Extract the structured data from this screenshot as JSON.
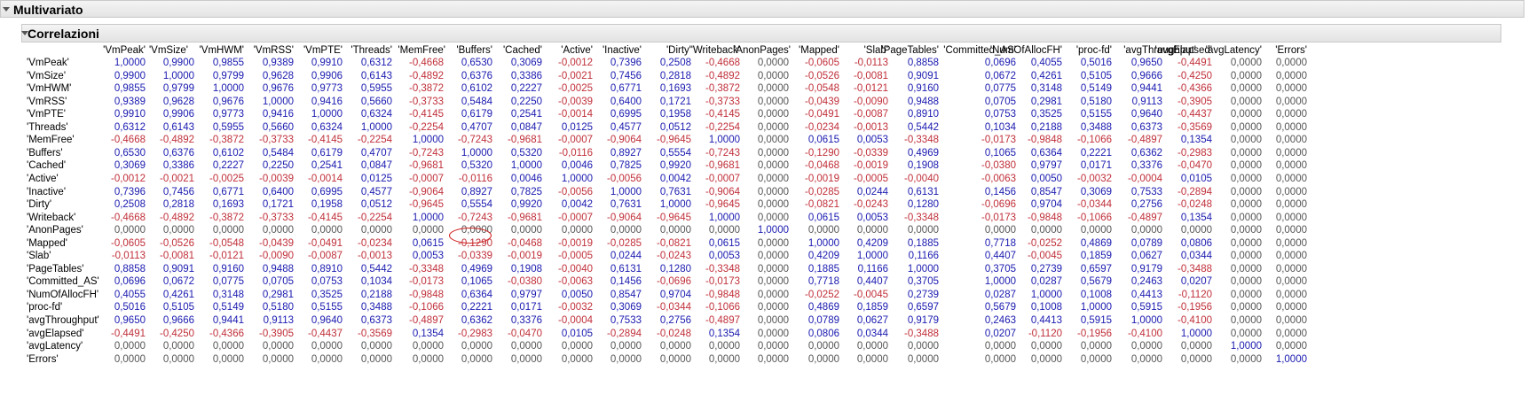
{
  "outer_panel": {
    "title": "Multivariato"
  },
  "inner_panel": {
    "title": "Correlazioni"
  },
  "variables": [
    "'VmPeak'",
    "'VmSize'",
    "'VmHWM'",
    "'VmRSS'",
    "'VmPTE'",
    "'Threads'",
    "'MemFree'",
    "'Buffers'",
    "'Cached'",
    "'Active'",
    "'Inactive'",
    "'Dirty'",
    "'Writeback'",
    "'AnonPages'",
    "'Mapped'",
    "'Slab'",
    "'PageTables'",
    "'Committed_AS'",
    "'NumOfAllocFH'",
    "'proc-fd'",
    "'avgThroughput'",
    "'avgElapsed'",
    "'avgLatency'",
    "'Errors'"
  ],
  "matrix": [
    [
      "1,0000",
      "0,9900",
      "0,9855",
      "0,9389",
      "0,9910",
      "0,6312",
      "-0,4668",
      "0,6530",
      "0,3069",
      "-0,0012",
      "0,7396",
      "0,2508",
      "-0,4668",
      "0,0000",
      "-0,0605",
      "-0,0113",
      "0,8858",
      "0,0696",
      "0,4055",
      "0,5016",
      "0,9650",
      "-0,4491",
      "0,0000",
      "0,0000"
    ],
    [
      "0,9900",
      "1,0000",
      "0,9799",
      "0,9628",
      "0,9906",
      "0,6143",
      "-0,4892",
      "0,6376",
      "0,3386",
      "-0,0021",
      "0,7456",
      "0,2818",
      "-0,4892",
      "0,0000",
      "-0,0526",
      "-0,0081",
      "0,9091",
      "0,0672",
      "0,4261",
      "0,5105",
      "0,9666",
      "-0,4250",
      "0,0000",
      "0,0000"
    ],
    [
      "0,9855",
      "0,9799",
      "1,0000",
      "0,9676",
      "0,9773",
      "0,5955",
      "-0,3872",
      "0,6102",
      "0,2227",
      "-0,0025",
      "0,6771",
      "0,1693",
      "-0,3872",
      "0,0000",
      "-0,0548",
      "-0,0121",
      "0,9160",
      "0,0775",
      "0,3148",
      "0,5149",
      "0,9441",
      "-0,4366",
      "0,0000",
      "0,0000"
    ],
    [
      "0,9389",
      "0,9628",
      "0,9676",
      "1,0000",
      "0,9416",
      "0,5660",
      "-0,3733",
      "0,5484",
      "0,2250",
      "-0,0039",
      "0,6400",
      "0,1721",
      "-0,3733",
      "0,0000",
      "-0,0439",
      "-0,0090",
      "0,9488",
      "0,0705",
      "0,2981",
      "0,5180",
      "0,9113",
      "-0,3905",
      "0,0000",
      "0,0000"
    ],
    [
      "0,9910",
      "0,9906",
      "0,9773",
      "0,9416",
      "1,0000",
      "0,6324",
      "-0,4145",
      "0,6179",
      "0,2541",
      "-0,0014",
      "0,6995",
      "0,1958",
      "-0,4145",
      "0,0000",
      "-0,0491",
      "-0,0087",
      "0,8910",
      "0,0753",
      "0,3525",
      "0,5155",
      "0,9640",
      "-0,4437",
      "0,0000",
      "0,0000"
    ],
    [
      "0,6312",
      "0,6143",
      "0,5955",
      "0,5660",
      "0,6324",
      "1,0000",
      "-0,2254",
      "0,4707",
      "0,0847",
      "0,0125",
      "0,4577",
      "0,0512",
      "-0,2254",
      "0,0000",
      "-0,0234",
      "-0,0013",
      "0,5442",
      "0,1034",
      "0,2188",
      "0,3488",
      "0,6373",
      "-0,3569",
      "0,0000",
      "0,0000"
    ],
    [
      "-0,4668",
      "-0,4892",
      "-0,3872",
      "-0,3733",
      "-0,4145",
      "-0,2254",
      "1,0000",
      "-0,7243",
      "-0,9681",
      "-0,0007",
      "-0,9064",
      "-0,9645",
      "1,0000",
      "0,0000",
      "0,0615",
      "0,0053",
      "-0,3348",
      "-0,0173",
      "-0,9848",
      "-0,1066",
      "-0,4897",
      "0,1354",
      "0,0000",
      "0,0000"
    ],
    [
      "0,6530",
      "0,6376",
      "0,6102",
      "0,5484",
      "0,6179",
      "0,4707",
      "-0,7243",
      "1,0000",
      "0,5320",
      "-0,0116",
      "0,8927",
      "0,5554",
      "-0,7243",
      "0,0000",
      "-0,1290",
      "-0,0339",
      "0,4969",
      "0,1065",
      "0,6364",
      "0,2221",
      "0,6362",
      "-0,2983",
      "0,0000",
      "0,0000"
    ],
    [
      "0,3069",
      "0,3386",
      "0,2227",
      "0,2250",
      "0,2541",
      "0,0847",
      "-0,9681",
      "0,5320",
      "1,0000",
      "0,0046",
      "0,7825",
      "0,9920",
      "-0,9681",
      "0,0000",
      "-0,0468",
      "-0,0019",
      "0,1908",
      "-0,0380",
      "0,9797",
      "0,0171",
      "0,3376",
      "-0,0470",
      "0,0000",
      "0,0000"
    ],
    [
      "-0,0012",
      "-0,0021",
      "-0,0025",
      "-0,0039",
      "-0,0014",
      "0,0125",
      "-0,0007",
      "-0,0116",
      "0,0046",
      "1,0000",
      "-0,0056",
      "0,0042",
      "-0,0007",
      "0,0000",
      "-0,0019",
      "-0,0005",
      "-0,0040",
      "-0,0063",
      "0,0050",
      "-0,0032",
      "-0,0004",
      "0,0105",
      "0,0000",
      "0,0000"
    ],
    [
      "0,7396",
      "0,7456",
      "0,6771",
      "0,6400",
      "0,6995",
      "0,4577",
      "-0,9064",
      "0,8927",
      "0,7825",
      "-0,0056",
      "1,0000",
      "0,7631",
      "-0,9064",
      "0,0000",
      "-0,0285",
      "0,0244",
      "0,6131",
      "0,1456",
      "0,8547",
      "0,3069",
      "0,7533",
      "-0,2894",
      "0,0000",
      "0,0000"
    ],
    [
      "0,2508",
      "0,2818",
      "0,1693",
      "0,1721",
      "0,1958",
      "0,0512",
      "-0,9645",
      "0,5554",
      "0,9920",
      "0,0042",
      "0,7631",
      "1,0000",
      "-0,9645",
      "0,0000",
      "-0,0821",
      "-0,0243",
      "0,1280",
      "-0,0696",
      "0,9704",
      "-0,0344",
      "0,2756",
      "-0,0248",
      "0,0000",
      "0,0000"
    ],
    [
      "-0,4668",
      "-0,4892",
      "-0,3872",
      "-0,3733",
      "-0,4145",
      "-0,2254",
      "1,0000",
      "-0,7243",
      "-0,9681",
      "-0,0007",
      "-0,9064",
      "-0,9645",
      "1,0000",
      "0,0000",
      "0,0615",
      "0,0053",
      "-0,3348",
      "-0,0173",
      "-0,9848",
      "-0,1066",
      "-0,4897",
      "0,1354",
      "0,0000",
      "0,0000"
    ],
    [
      "0,0000",
      "0,0000",
      "0,0000",
      "0,0000",
      "0,0000",
      "0,0000",
      "0,0000",
      "0,0000",
      "0,0000",
      "0,0000",
      "0,0000",
      "0,0000",
      "0,0000",
      "1,0000",
      "0,0000",
      "0,0000",
      "0,0000",
      "0,0000",
      "0,0000",
      "0,0000",
      "0,0000",
      "0,0000",
      "0,0000",
      "0,0000"
    ],
    [
      "-0,0605",
      "-0,0526",
      "-0,0548",
      "-0,0439",
      "-0,0491",
      "-0,0234",
      "0,0615",
      "-0,1290",
      "-0,0468",
      "-0,0019",
      "-0,0285",
      "-0,0821",
      "0,0615",
      "0,0000",
      "1,0000",
      "0,4209",
      "0,1885",
      "0,7718",
      "-0,0252",
      "0,4869",
      "0,0789",
      "0,0806",
      "0,0000",
      "0,0000"
    ],
    [
      "-0,0113",
      "-0,0081",
      "-0,0121",
      "-0,0090",
      "-0,0087",
      "-0,0013",
      "0,0053",
      "-0,0339",
      "-0,0019",
      "-0,0005",
      "0,0244",
      "-0,0243",
      "0,0053",
      "0,0000",
      "0,4209",
      "1,0000",
      "0,1166",
      "0,4407",
      "-0,0045",
      "0,1859",
      "0,0627",
      "0,0344",
      "0,0000",
      "0,0000"
    ],
    [
      "0,8858",
      "0,9091",
      "0,9160",
      "0,9488",
      "0,8910",
      "0,5442",
      "-0,3348",
      "0,4969",
      "0,1908",
      "-0,0040",
      "0,6131",
      "0,1280",
      "-0,3348",
      "0,0000",
      "0,1885",
      "0,1166",
      "1,0000",
      "0,3705",
      "0,2739",
      "0,6597",
      "0,9179",
      "-0,3488",
      "0,0000",
      "0,0000"
    ],
    [
      "0,0696",
      "0,0672",
      "0,0775",
      "0,0705",
      "0,0753",
      "0,1034",
      "-0,0173",
      "0,1065",
      "-0,0380",
      "-0,0063",
      "0,1456",
      "-0,0696",
      "-0,0173",
      "0,0000",
      "0,7718",
      "0,4407",
      "0,3705",
      "1,0000",
      "0,0287",
      "0,5679",
      "0,2463",
      "0,0207",
      "0,0000",
      "0,0000"
    ],
    [
      "0,4055",
      "0,4261",
      "0,3148",
      "0,2981",
      "0,3525",
      "0,2188",
      "-0,9848",
      "0,6364",
      "0,9797",
      "0,0050",
      "0,8547",
      "0,9704",
      "-0,9848",
      "0,0000",
      "-0,0252",
      "-0,0045",
      "0,2739",
      "0,0287",
      "1,0000",
      "0,1008",
      "0,4413",
      "-0,1120",
      "0,0000",
      "0,0000"
    ],
    [
      "0,5016",
      "0,5105",
      "0,5149",
      "0,5180",
      "0,5155",
      "0,3488",
      "-0,1066",
      "0,2221",
      "0,0171",
      "-0,0032",
      "0,3069",
      "-0,0344",
      "-0,1066",
      "0,0000",
      "0,4869",
      "0,1859",
      "0,6597",
      "0,5679",
      "0,1008",
      "1,0000",
      "0,5915",
      "-0,1956",
      "0,0000",
      "0,0000"
    ],
    [
      "0,9650",
      "0,9666",
      "0,9441",
      "0,9113",
      "0,9640",
      "0,6373",
      "-0,4897",
      "0,6362",
      "0,3376",
      "-0,0004",
      "0,7533",
      "0,2756",
      "-0,4897",
      "0,0000",
      "0,0789",
      "0,0627",
      "0,9179",
      "0,2463",
      "0,4413",
      "0,5915",
      "1,0000",
      "-0,4100",
      "0,0000",
      "0,0000"
    ],
    [
      "-0,4491",
      "-0,4250",
      "-0,4366",
      "-0,3905",
      "-0,4437",
      "-0,3569",
      "0,1354",
      "-0,2983",
      "-0,0470",
      "0,0105",
      "-0,2894",
      "-0,0248",
      "0,1354",
      "0,0000",
      "0,0806",
      "0,0344",
      "-0,3488",
      "0,0207",
      "-0,1120",
      "-0,1956",
      "-0,4100",
      "1,0000",
      "0,0000",
      "0,0000"
    ],
    [
      "0,0000",
      "0,0000",
      "0,0000",
      "0,0000",
      "0,0000",
      "0,0000",
      "0,0000",
      "0,0000",
      "0,0000",
      "0,0000",
      "0,0000",
      "0,0000",
      "0,0000",
      "0,0000",
      "0,0000",
      "0,0000",
      "0,0000",
      "0,0000",
      "0,0000",
      "0,0000",
      "0,0000",
      "0,0000",
      "1,0000",
      "0,0000"
    ],
    [
      "0,0000",
      "0,0000",
      "0,0000",
      "0,0000",
      "0,0000",
      "0,0000",
      "0,0000",
      "0,0000",
      "0,0000",
      "0,0000",
      "0,0000",
      "0,0000",
      "0,0000",
      "0,0000",
      "0,0000",
      "0,0000",
      "0,0000",
      "0,0000",
      "0,0000",
      "0,0000",
      "0,0000",
      "0,0000",
      "0,0000",
      "1,0000"
    ]
  ],
  "colors": {
    "positive": "#1a1ab0",
    "negative": "#c0303a",
    "zero": "#555555",
    "highlight": "#d02020"
  }
}
